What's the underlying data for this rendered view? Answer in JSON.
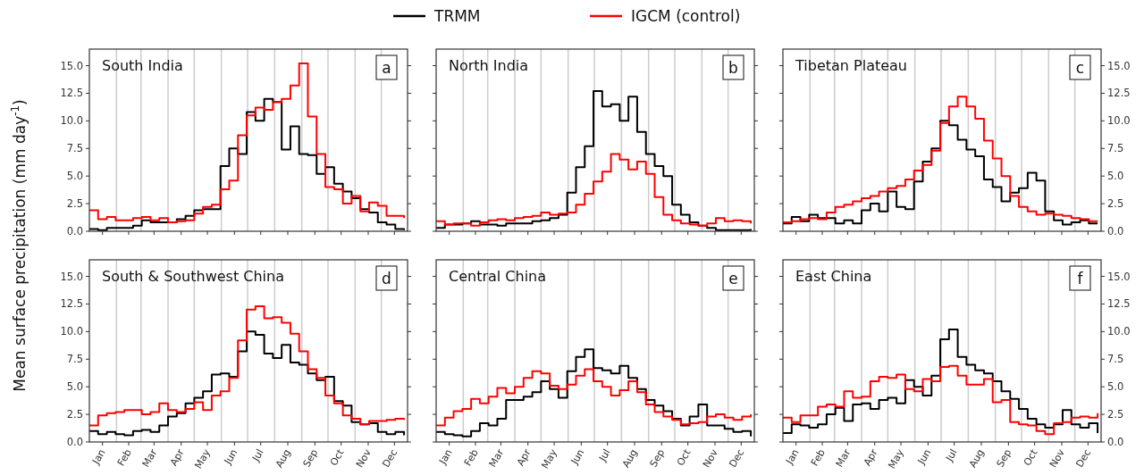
{
  "chart_data": [
    {
      "type": "step",
      "title": "South India",
      "annotations": [
        "a"
      ],
      "ylabel": "Mean surface precipitation (mm day$^{-1}$)",
      "legend": "top",
      "tick_labels": "y",
      "x": [
        "--01-01",
        "--01-11",
        "--01-21",
        "--01-31",
        "--02-10",
        "--02-20",
        "--03-02",
        "--03-12",
        "--03-22",
        "--04-01",
        "--04-11",
        "--04-21",
        "--05-01",
        "--05-11",
        "--05-21",
        "--05-31",
        "--06-10",
        "--06-20",
        "--06-30",
        "--07-10",
        "--07-20",
        "--07-30",
        "--08-09",
        "--08-19",
        "--08-29",
        "--09-08",
        "--09-18",
        "--09-28",
        "--10-08",
        "--10-18",
        "--10-28",
        "--11-07",
        "--11-17",
        "--11-27",
        "--12-07",
        "--12-17",
        "--12-27"
      ],
      "xlim": [
        "--01-01",
        "--12-31"
      ],
      "xticks": [
        {
          "value": "--01-16",
          "label": null
        },
        {
          "value": "--02-15",
          "label": null
        },
        {
          "value": "--03-16",
          "label": null
        },
        {
          "value": "--04-16",
          "label": null
        },
        {
          "value": "--05-16",
          "label": null
        },
        {
          "value": "--06-16",
          "label": null
        },
        {
          "value": "--07-16",
          "label": null
        },
        {
          "value": "--08-16",
          "label": null
        },
        {
          "value": "--09-16",
          "label": null
        },
        {
          "value": "--10-16",
          "label": null
        },
        {
          "value": "--11-16",
          "label": null
        },
        {
          "value": "--12-16",
          "label": null
        }
      ],
      "ylim": [
        0,
        16.5
      ],
      "yticks": [
        {
          "value": 0,
          "label": "0.0"
        },
        {
          "value": 2.5,
          "label": "2.5"
        },
        {
          "value": 5,
          "label": "5.0"
        },
        {
          "value": 7.5,
          "label": "7.5"
        },
        {
          "value": 10,
          "label": "10.0"
        },
        {
          "value": 12.5,
          "label": "12.5"
        },
        {
          "value": 15,
          "label": "15.0"
        }
      ],
      "ref_lines": [
        {
          "axis": "x",
          "value": "--02-01",
          "color": "#cccccc"
        },
        {
          "axis": "x",
          "value": "--03-01",
          "color": "#cccccc"
        },
        {
          "axis": "x",
          "value": "--04-01",
          "color": "#cccccc"
        },
        {
          "axis": "x",
          "value": "--05-01",
          "color": "#cccccc"
        },
        {
          "axis": "x",
          "value": "--06-01",
          "color": "#cccccc"
        },
        {
          "axis": "x",
          "value": "--07-01",
          "color": "#cccccc"
        },
        {
          "axis": "x",
          "value": "--08-01",
          "color": "#cccccc"
        },
        {
          "axis": "x",
          "value": "--09-01",
          "color": "#cccccc"
        },
        {
          "axis": "x",
          "value": "--10-01",
          "color": "#cccccc"
        },
        {
          "axis": "x",
          "value": "--11-01",
          "color": "#cccccc"
        },
        {
          "axis": "x",
          "value": "--12-01",
          "color": "#cccccc"
        }
      ],
      "series": [
        {
          "name": "TRMM",
          "color": "#000000",
          "values": [
            0.2,
            0.1,
            0.3,
            0.3,
            0.3,
            0.5,
            1.0,
            0.8,
            0.8,
            0.8,
            1.1,
            1.4,
            1.9,
            2.0,
            2.0,
            5.9,
            7.5,
            7.0,
            10.8,
            10.0,
            12.0,
            11.7,
            7.4,
            9.5,
            7.0,
            6.9,
            5.2,
            5.8,
            4.3,
            3.6,
            3.0,
            2.0,
            1.7,
            0.8,
            0.6,
            0.2,
            0.1
          ]
        },
        {
          "name": "IGCM (control)",
          "color": "#ff0000",
          "values": [
            1.9,
            1.1,
            1.3,
            1.0,
            1.0,
            1.2,
            1.3,
            1.0,
            1.2,
            0.8,
            0.9,
            1.0,
            1.6,
            2.2,
            2.4,
            3.8,
            4.6,
            8.7,
            10.5,
            11.2,
            11.0,
            11.7,
            12.0,
            13.2,
            15.2,
            10.4,
            7.0,
            4.0,
            3.8,
            2.5,
            3.2,
            1.8,
            2.6,
            2.3,
            1.4,
            1.4,
            1.2
          ]
        }
      ]
    },
    {
      "type": "step",
      "title": "North India",
      "annotations": [
        "b"
      ],
      "tick_labels": false,
      "x": [
        "--01-01",
        "--01-11",
        "--01-21",
        "--01-31",
        "--02-10",
        "--02-20",
        "--03-02",
        "--03-12",
        "--03-22",
        "--04-01",
        "--04-11",
        "--04-21",
        "--05-01",
        "--05-11",
        "--05-21",
        "--05-31",
        "--06-10",
        "--06-20",
        "--06-30",
        "--07-10",
        "--07-20",
        "--07-30",
        "--08-09",
        "--08-19",
        "--08-29",
        "--09-08",
        "--09-18",
        "--09-28",
        "--10-08",
        "--10-18",
        "--10-28",
        "--11-07",
        "--11-17",
        "--11-27",
        "--12-07",
        "--12-17",
        "--12-27"
      ],
      "xlim": [
        "--01-01",
        "--12-31"
      ],
      "xticks": [
        {
          "value": "--01-16",
          "label": null
        },
        {
          "value": "--02-15",
          "label": null
        },
        {
          "value": "--03-16",
          "label": null
        },
        {
          "value": "--04-16",
          "label": null
        },
        {
          "value": "--05-16",
          "label": null
        },
        {
          "value": "--06-16",
          "label": null
        },
        {
          "value": "--07-16",
          "label": null
        },
        {
          "value": "--08-16",
          "label": null
        },
        {
          "value": "--09-16",
          "label": null
        },
        {
          "value": "--10-16",
          "label": null
        },
        {
          "value": "--11-16",
          "label": null
        },
        {
          "value": "--12-16",
          "label": null
        }
      ],
      "ylim": [
        0,
        16.5
      ],
      "yticks": [
        {
          "value": 0,
          "label": null
        },
        {
          "value": 2.5,
          "label": null
        },
        {
          "value": 5,
          "label": null
        },
        {
          "value": 7.5,
          "label": null
        },
        {
          "value": 10,
          "label": null
        },
        {
          "value": 12.5,
          "label": null
        },
        {
          "value": 15,
          "label": null
        }
      ],
      "ref_lines": [
        {
          "axis": "x",
          "value": "--02-01",
          "color": "#cccccc"
        },
        {
          "axis": "x",
          "value": "--03-01",
          "color": "#cccccc"
        },
        {
          "axis": "x",
          "value": "--04-01",
          "color": "#cccccc"
        },
        {
          "axis": "x",
          "value": "--05-01",
          "color": "#cccccc"
        },
        {
          "axis": "x",
          "value": "--06-01",
          "color": "#cccccc"
        },
        {
          "axis": "x",
          "value": "--07-01",
          "color": "#cccccc"
        },
        {
          "axis": "x",
          "value": "--08-01",
          "color": "#cccccc"
        },
        {
          "axis": "x",
          "value": "--09-01",
          "color": "#cccccc"
        },
        {
          "axis": "x",
          "value": "--10-01",
          "color": "#cccccc"
        },
        {
          "axis": "x",
          "value": "--11-01",
          "color": "#cccccc"
        },
        {
          "axis": "x",
          "value": "--12-01",
          "color": "#cccccc"
        }
      ],
      "series": [
        {
          "color": "#000000",
          "values": [
            0.3,
            0.6,
            0.6,
            0.7,
            0.9,
            0.6,
            0.6,
            0.5,
            0.7,
            0.7,
            0.7,
            0.9,
            1.0,
            1.2,
            1.5,
            3.5,
            5.8,
            7.7,
            12.7,
            11.3,
            11.5,
            10.0,
            12.2,
            9.0,
            7.0,
            5.9,
            5.0,
            2.4,
            1.5,
            0.8,
            0.5,
            0.3,
            0.1,
            0.1,
            0.1,
            0.1,
            0.2
          ]
        },
        {
          "color": "#ff0000",
          "values": [
            0.9,
            0.6,
            0.7,
            0.7,
            0.5,
            0.8,
            1.0,
            1.1,
            1.0,
            1.2,
            1.3,
            1.4,
            1.7,
            1.5,
            1.6,
            1.7,
            2.4,
            3.4,
            4.5,
            5.4,
            7.0,
            6.5,
            5.6,
            6.3,
            5.2,
            3.1,
            1.5,
            1.0,
            0.7,
            0.6,
            0.5,
            0.7,
            1.2,
            0.9,
            1.0,
            0.9,
            0.7
          ]
        }
      ]
    },
    {
      "type": "step",
      "title": "Tibetan Plateau",
      "annotations": [
        "c"
      ],
      "tick_labels": "y",
      "x": [
        "--01-01",
        "--01-11",
        "--01-21",
        "--01-31",
        "--02-10",
        "--02-20",
        "--03-02",
        "--03-12",
        "--03-22",
        "--04-01",
        "--04-11",
        "--04-21",
        "--05-01",
        "--05-11",
        "--05-21",
        "--05-31",
        "--06-10",
        "--06-20",
        "--06-30",
        "--07-10",
        "--07-20",
        "--07-30",
        "--08-09",
        "--08-19",
        "--08-29",
        "--09-08",
        "--09-18",
        "--09-28",
        "--10-08",
        "--10-18",
        "--10-28",
        "--11-07",
        "--11-17",
        "--11-27",
        "--12-07",
        "--12-17",
        "--12-27"
      ],
      "xlim": [
        "--01-01",
        "--12-31"
      ],
      "xticks": [
        {
          "value": "--01-16",
          "label": null
        },
        {
          "value": "--02-15",
          "label": null
        },
        {
          "value": "--03-16",
          "label": null
        },
        {
          "value": "--04-16",
          "label": null
        },
        {
          "value": "--05-16",
          "label": null
        },
        {
          "value": "--06-16",
          "label": null
        },
        {
          "value": "--07-16",
          "label": null
        },
        {
          "value": "--08-16",
          "label": null
        },
        {
          "value": "--09-16",
          "label": null
        },
        {
          "value": "--10-16",
          "label": null
        },
        {
          "value": "--11-16",
          "label": null
        },
        {
          "value": "--12-16",
          "label": null
        }
      ],
      "ylim": [
        0,
        16.5
      ],
      "yticks": [
        {
          "value": 0,
          "label": "0.0"
        },
        {
          "value": 2.5,
          "label": "2.5"
        },
        {
          "value": 5,
          "label": "5.0"
        },
        {
          "value": 7.5,
          "label": "7.5"
        },
        {
          "value": 10,
          "label": "10.0"
        },
        {
          "value": 12.5,
          "label": "12.5"
        },
        {
          "value": 15,
          "label": "15.0"
        }
      ],
      "ref_lines": [
        {
          "axis": "x",
          "value": "--02-01",
          "color": "#cccccc"
        },
        {
          "axis": "x",
          "value": "--03-01",
          "color": "#cccccc"
        },
        {
          "axis": "x",
          "value": "--04-01",
          "color": "#cccccc"
        },
        {
          "axis": "x",
          "value": "--05-01",
          "color": "#cccccc"
        },
        {
          "axis": "x",
          "value": "--06-01",
          "color": "#cccccc"
        },
        {
          "axis": "x",
          "value": "--07-01",
          "color": "#cccccc"
        },
        {
          "axis": "x",
          "value": "--08-01",
          "color": "#cccccc"
        },
        {
          "axis": "x",
          "value": "--09-01",
          "color": "#cccccc"
        },
        {
          "axis": "x",
          "value": "--10-01",
          "color": "#cccccc"
        },
        {
          "axis": "x",
          "value": "--11-01",
          "color": "#cccccc"
        },
        {
          "axis": "x",
          "value": "--12-01",
          "color": "#cccccc"
        }
      ],
      "series": [
        {
          "color": "#000000",
          "values": [
            0.7,
            1.3,
            0.9,
            1.5,
            1.2,
            1.2,
            0.7,
            1.0,
            0.7,
            1.9,
            2.5,
            1.8,
            3.6,
            2.2,
            2.0,
            4.5,
            6.3,
            7.5,
            10.0,
            9.6,
            8.3,
            7.4,
            6.8,
            4.7,
            4.0,
            2.7,
            3.5,
            3.9,
            5.3,
            4.6,
            1.8,
            1.0,
            0.6,
            0.8,
            1.0,
            0.7,
            0.7
          ]
        },
        {
          "color": "#ff0000",
          "values": [
            0.8,
            0.9,
            1.1,
            1.2,
            1.1,
            1.7,
            2.2,
            2.4,
            2.7,
            3.0,
            3.2,
            3.6,
            3.9,
            4.1,
            4.7,
            5.5,
            6.0,
            7.3,
            9.8,
            11.3,
            12.2,
            11.3,
            10.2,
            8.2,
            6.6,
            5.0,
            3.2,
            2.2,
            1.8,
            1.5,
            1.6,
            1.5,
            1.4,
            1.2,
            1.1,
            0.9,
            0.9
          ]
        }
      ]
    },
    {
      "type": "step",
      "title": "South & Southwest China",
      "annotations": [
        "d"
      ],
      "x": [
        "--01-01",
        "--01-11",
        "--01-21",
        "--01-31",
        "--02-10",
        "--02-20",
        "--03-02",
        "--03-12",
        "--03-22",
        "--04-01",
        "--04-11",
        "--04-21",
        "--05-01",
        "--05-11",
        "--05-21",
        "--05-31",
        "--06-10",
        "--06-20",
        "--06-30",
        "--07-10",
        "--07-20",
        "--07-30",
        "--08-09",
        "--08-19",
        "--08-29",
        "--09-08",
        "--09-18",
        "--09-28",
        "--10-08",
        "--10-18",
        "--10-28",
        "--11-07",
        "--11-17",
        "--11-27",
        "--12-07",
        "--12-17",
        "--12-27"
      ],
      "xlim": [
        "--01-01",
        "--12-31"
      ],
      "xticks": [
        {
          "value": "--01-16",
          "label": "Jan"
        },
        {
          "value": "--02-15",
          "label": "Feb"
        },
        {
          "value": "--03-16",
          "label": "Mar"
        },
        {
          "value": "--04-16",
          "label": "Apr"
        },
        {
          "value": "--05-16",
          "label": "May"
        },
        {
          "value": "--06-16",
          "label": "Jun"
        },
        {
          "value": "--07-16",
          "label": "Jul"
        },
        {
          "value": "--08-16",
          "label": "Aug"
        },
        {
          "value": "--09-16",
          "label": "Sep"
        },
        {
          "value": "--10-16",
          "label": "Oct"
        },
        {
          "value": "--11-16",
          "label": "Nov"
        },
        {
          "value": "--12-16",
          "label": "Dec"
        }
      ],
      "ylim": [
        0,
        16.5
      ],
      "yticks": [
        {
          "value": 0,
          "label": "0.0"
        },
        {
          "value": 2.5,
          "label": "2.5"
        },
        {
          "value": 5,
          "label": "5.0"
        },
        {
          "value": 7.5,
          "label": "7.5"
        },
        {
          "value": 10,
          "label": "10.0"
        },
        {
          "value": 12.5,
          "label": "12.5"
        },
        {
          "value": 15,
          "label": "15.0"
        }
      ],
      "ref_lines": [
        {
          "axis": "x",
          "value": "--02-01",
          "color": "#cccccc"
        },
        {
          "axis": "x",
          "value": "--03-01",
          "color": "#cccccc"
        },
        {
          "axis": "x",
          "value": "--04-01",
          "color": "#cccccc"
        },
        {
          "axis": "x",
          "value": "--05-01",
          "color": "#cccccc"
        },
        {
          "axis": "x",
          "value": "--06-01",
          "color": "#cccccc"
        },
        {
          "axis": "x",
          "value": "--07-01",
          "color": "#cccccc"
        },
        {
          "axis": "x",
          "value": "--08-01",
          "color": "#cccccc"
        },
        {
          "axis": "x",
          "value": "--09-01",
          "color": "#cccccc"
        },
        {
          "axis": "x",
          "value": "--10-01",
          "color": "#cccccc"
        },
        {
          "axis": "x",
          "value": "--11-01",
          "color": "#cccccc"
        },
        {
          "axis": "x",
          "value": "--12-01",
          "color": "#cccccc"
        }
      ],
      "series": [
        {
          "color": "#000000",
          "values": [
            1.0,
            0.7,
            0.9,
            0.7,
            0.6,
            1.0,
            1.1,
            0.9,
            1.5,
            2.3,
            2.6,
            3.5,
            4.0,
            4.6,
            6.1,
            6.2,
            5.9,
            8.2,
            10.0,
            9.7,
            8.0,
            7.6,
            8.8,
            7.2,
            7.0,
            6.2,
            5.6,
            5.9,
            3.7,
            3.3,
            1.8,
            1.6,
            1.7,
            0.9,
            0.7,
            0.9,
            0.6
          ]
        },
        {
          "color": "#ff0000",
          "values": [
            1.5,
            2.4,
            2.6,
            2.7,
            2.9,
            2.9,
            2.5,
            2.7,
            3.5,
            2.9,
            2.7,
            3.0,
            3.6,
            2.9,
            4.2,
            4.6,
            5.8,
            9.2,
            12.0,
            12.3,
            11.2,
            11.3,
            10.8,
            9.8,
            8.2,
            6.6,
            5.8,
            4.2,
            3.5,
            2.4,
            2.1,
            1.6,
            1.9,
            1.9,
            2.0,
            2.1,
            2.0
          ]
        }
      ]
    },
    {
      "type": "step",
      "title": "Central China",
      "annotations": [
        "e"
      ],
      "tick_labels": "x",
      "x": [
        "--01-01",
        "--01-11",
        "--01-21",
        "--01-31",
        "--02-10",
        "--02-20",
        "--03-02",
        "--03-12",
        "--03-22",
        "--04-01",
        "--04-11",
        "--04-21",
        "--05-01",
        "--05-11",
        "--05-21",
        "--05-31",
        "--06-10",
        "--06-20",
        "--06-30",
        "--07-10",
        "--07-20",
        "--07-30",
        "--08-09",
        "--08-19",
        "--08-29",
        "--09-08",
        "--09-18",
        "--09-28",
        "--10-08",
        "--10-18",
        "--10-28",
        "--11-07",
        "--11-17",
        "--11-27",
        "--12-07",
        "--12-17",
        "--12-27"
      ],
      "xlim": [
        "--01-01",
        "--12-31"
      ],
      "xticks": [
        {
          "value": "--01-16",
          "label": "Jan"
        },
        {
          "value": "--02-15",
          "label": "Feb"
        },
        {
          "value": "--03-16",
          "label": "Mar"
        },
        {
          "value": "--04-16",
          "label": "Apr"
        },
        {
          "value": "--05-16",
          "label": "May"
        },
        {
          "value": "--06-16",
          "label": "Jun"
        },
        {
          "value": "--07-16",
          "label": "Jul"
        },
        {
          "value": "--08-16",
          "label": "Aug"
        },
        {
          "value": "--09-16",
          "label": "Sep"
        },
        {
          "value": "--10-16",
          "label": "Oct"
        },
        {
          "value": "--11-16",
          "label": "Nov"
        },
        {
          "value": "--12-16",
          "label": "Dec"
        }
      ],
      "ylim": [
        0,
        16.5
      ],
      "yticks": [
        {
          "value": 0,
          "label": null
        },
        {
          "value": 2.5,
          "label": null
        },
        {
          "value": 5,
          "label": null
        },
        {
          "value": 7.5,
          "label": null
        },
        {
          "value": 10,
          "label": null
        },
        {
          "value": 12.5,
          "label": null
        },
        {
          "value": 15,
          "label": null
        }
      ],
      "ref_lines": [
        {
          "axis": "x",
          "value": "--02-01",
          "color": "#cccccc"
        },
        {
          "axis": "x",
          "value": "--03-01",
          "color": "#cccccc"
        },
        {
          "axis": "x",
          "value": "--04-01",
          "color": "#cccccc"
        },
        {
          "axis": "x",
          "value": "--05-01",
          "color": "#cccccc"
        },
        {
          "axis": "x",
          "value": "--06-01",
          "color": "#cccccc"
        },
        {
          "axis": "x",
          "value": "--07-01",
          "color": "#cccccc"
        },
        {
          "axis": "x",
          "value": "--08-01",
          "color": "#cccccc"
        },
        {
          "axis": "x",
          "value": "--09-01",
          "color": "#cccccc"
        },
        {
          "axis": "x",
          "value": "--10-01",
          "color": "#cccccc"
        },
        {
          "axis": "x",
          "value": "--11-01",
          "color": "#cccccc"
        },
        {
          "axis": "x",
          "value": "--12-01",
          "color": "#cccccc"
        }
      ],
      "series": [
        {
          "color": "#000000",
          "values": [
            0.9,
            0.7,
            0.6,
            0.5,
            1.0,
            1.7,
            1.5,
            2.1,
            3.8,
            3.8,
            4.1,
            4.5,
            5.5,
            4.8,
            4.0,
            6.4,
            7.7,
            8.4,
            6.7,
            6.5,
            6.2,
            6.9,
            5.8,
            4.8,
            3.8,
            3.3,
            2.8,
            2.1,
            1.5,
            2.3,
            3.4,
            1.5,
            1.5,
            1.2,
            0.9,
            1.0,
            0.5
          ]
        },
        {
          "color": "#ff0000",
          "values": [
            1.5,
            2.2,
            2.8,
            3.0,
            3.9,
            3.5,
            4.1,
            4.9,
            4.4,
            5.0,
            5.8,
            6.4,
            6.2,
            5.1,
            4.8,
            5.2,
            6.0,
            6.6,
            5.5,
            5.0,
            4.2,
            4.7,
            5.5,
            4.5,
            3.4,
            2.7,
            2.3,
            2.0,
            1.6,
            1.7,
            1.8,
            2.3,
            2.5,
            2.2,
            2.0,
            2.3,
            2.5
          ]
        }
      ]
    },
    {
      "type": "step",
      "title": "East China",
      "annotations": [
        "f"
      ],
      "x": [
        "--01-01",
        "--01-11",
        "--01-21",
        "--01-31",
        "--02-10",
        "--02-20",
        "--03-02",
        "--03-12",
        "--03-22",
        "--04-01",
        "--04-11",
        "--04-21",
        "--05-01",
        "--05-11",
        "--05-21",
        "--05-31",
        "--06-10",
        "--06-20",
        "--06-30",
        "--07-10",
        "--07-20",
        "--07-30",
        "--08-09",
        "--08-19",
        "--08-29",
        "--09-08",
        "--09-18",
        "--09-28",
        "--10-08",
        "--10-18",
        "--10-28",
        "--11-07",
        "--11-17",
        "--11-27",
        "--12-07",
        "--12-17",
        "--12-27"
      ],
      "xlim": [
        "--01-01",
        "--12-31"
      ],
      "xticks": [
        {
          "value": "--01-16",
          "label": "Jan"
        },
        {
          "value": "--02-15",
          "label": "Feb"
        },
        {
          "value": "--03-16",
          "label": "Mar"
        },
        {
          "value": "--04-16",
          "label": "Apr"
        },
        {
          "value": "--05-16",
          "label": "May"
        },
        {
          "value": "--06-16",
          "label": "Jun"
        },
        {
          "value": "--07-16",
          "label": "Jul"
        },
        {
          "value": "--08-16",
          "label": "Aug"
        },
        {
          "value": "--09-16",
          "label": "Sep"
        },
        {
          "value": "--10-16",
          "label": "Oct"
        },
        {
          "value": "--11-16",
          "label": "Nov"
        },
        {
          "value": "--12-16",
          "label": "Dec"
        }
      ],
      "ylim": [
        0,
        16.5
      ],
      "yticks": [
        {
          "value": 0,
          "label": "0.0"
        },
        {
          "value": 2.5,
          "label": "2.5"
        },
        {
          "value": 5,
          "label": "5.0"
        },
        {
          "value": 7.5,
          "label": "7.5"
        },
        {
          "value": 10,
          "label": "10.0"
        },
        {
          "value": 12.5,
          "label": "12.5"
        },
        {
          "value": 15,
          "label": "15.0"
        }
      ],
      "ref_lines": [
        {
          "axis": "x",
          "value": "--02-01",
          "color": "#cccccc"
        },
        {
          "axis": "x",
          "value": "--03-01",
          "color": "#cccccc"
        },
        {
          "axis": "x",
          "value": "--04-01",
          "color": "#cccccc"
        },
        {
          "axis": "x",
          "value": "--05-01",
          "color": "#cccccc"
        },
        {
          "axis": "x",
          "value": "--06-01",
          "color": "#cccccc"
        },
        {
          "axis": "x",
          "value": "--07-01",
          "color": "#cccccc"
        },
        {
          "axis": "x",
          "value": "--08-01",
          "color": "#cccccc"
        },
        {
          "axis": "x",
          "value": "--09-01",
          "color": "#cccccc"
        },
        {
          "axis": "x",
          "value": "--10-01",
          "color": "#cccccc"
        },
        {
          "axis": "x",
          "value": "--11-01",
          "color": "#cccccc"
        },
        {
          "axis": "x",
          "value": "--12-01",
          "color": "#cccccc"
        }
      ],
      "series": [
        {
          "color": "#000000",
          "values": [
            0.8,
            1.6,
            1.5,
            1.3,
            1.6,
            2.5,
            3.1,
            1.9,
            3.4,
            3.5,
            3.0,
            3.8,
            4.0,
            3.5,
            5.6,
            5.0,
            4.2,
            6.0,
            9.3,
            10.2,
            7.7,
            7.0,
            6.5,
            6.2,
            5.5,
            4.6,
            3.9,
            3.0,
            2.1,
            1.6,
            1.3,
            1.6,
            2.9,
            1.6,
            1.3,
            1.7,
            0.8
          ]
        },
        {
          "color": "#ff0000",
          "values": [
            2.2,
            1.8,
            2.4,
            2.4,
            3.2,
            3.4,
            3.2,
            4.6,
            4.0,
            4.1,
            5.5,
            5.9,
            5.8,
            6.1,
            4.8,
            4.6,
            5.7,
            5.5,
            6.8,
            6.9,
            6.0,
            5.2,
            5.2,
            5.7,
            3.6,
            3.8,
            1.8,
            1.6,
            1.5,
            1.0,
            0.7,
            1.7,
            1.8,
            2.2,
            2.3,
            2.2,
            2.6
          ]
        }
      ]
    }
  ]
}
